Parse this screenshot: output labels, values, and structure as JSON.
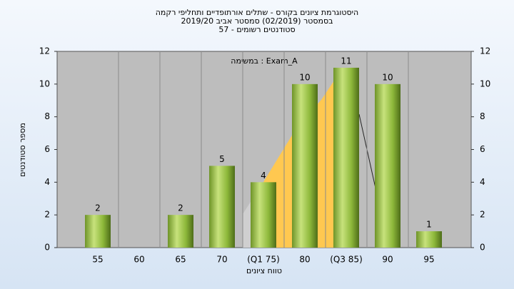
{
  "chart_data": {
    "type": "bar",
    "title": "היסטוגרמת ציונים בקורס - שתלים אורתופדיים ותחליפי רקמה",
    "subtitle": "בסמסטר  (02/2019)  סמסטר אביב 2019/20",
    "subtitle2": "סטודנטים רשומים - 57",
    "annotation": "במשימה : Exam_A",
    "x_label": "טווח ציונים",
    "y_label": "מספר סטודנטים",
    "categories": [
      "55",
      "60",
      "65",
      "70",
      "(Q1 75)",
      "80",
      "(Q3 85)",
      "90",
      "95"
    ],
    "values": [
      2,
      null,
      2,
      5,
      4,
      10,
      11,
      10,
      1
    ],
    "color": "#8db83a",
    "ylim": [
      0,
      12
    ],
    "yticks": [
      0,
      2,
      4,
      6,
      8,
      10,
      12
    ],
    "grid": true
  }
}
